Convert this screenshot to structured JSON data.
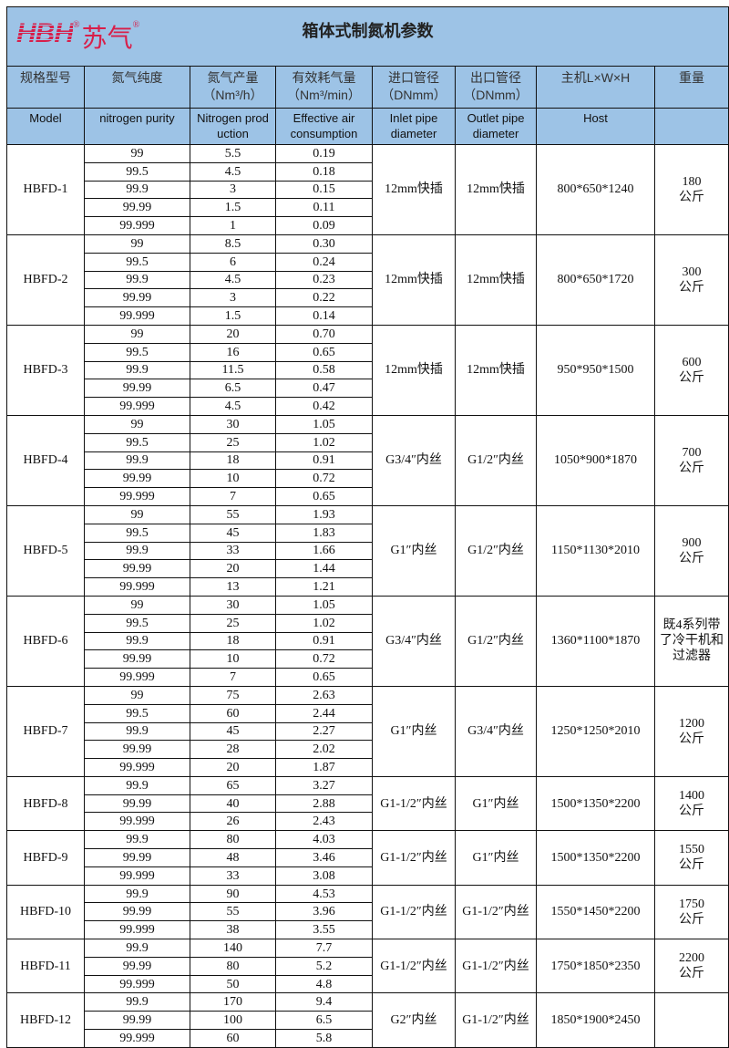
{
  "logo": {
    "mark": "HBH",
    "name": "苏气",
    "reg": "®"
  },
  "title": "箱体式制氮机参数",
  "headers_cn": [
    "规格型号",
    "氮气纯度",
    "氮气产量\n（Nm³/h）",
    "有效耗气量\n（Nm³/min）",
    "进口管径\n（DNmm）",
    "出口管径\n（DNmm）",
    "主机L×W×H",
    "重量"
  ],
  "headers_en": [
    "Model",
    "nitrogen purity",
    "Nitrogen prod\nuction",
    "Effective air\nconsumption",
    "Inlet pipe\ndiameter",
    "Outlet pipe\ndiameter",
    "Host",
    ""
  ],
  "models": [
    {
      "model": "HBFD-1",
      "rows": [
        [
          "99",
          "5.5",
          "0.19"
        ],
        [
          "99.5",
          "4.5",
          "0.18"
        ],
        [
          "99.9",
          "3",
          "0.15"
        ],
        [
          "99.99",
          "1.5",
          "0.11"
        ],
        [
          "99.999",
          "1",
          "0.09"
        ]
      ],
      "inlet": "12mm快插",
      "outlet": "12mm快插",
      "host": "800*650*1240",
      "weight": "180\n公斤"
    },
    {
      "model": "HBFD-2",
      "rows": [
        [
          "99",
          "8.5",
          "0.30"
        ],
        [
          "99.5",
          "6",
          "0.24"
        ],
        [
          "99.9",
          "4.5",
          "0.23"
        ],
        [
          "99.99",
          "3",
          "0.22"
        ],
        [
          "99.999",
          "1.5",
          "0.14"
        ]
      ],
      "inlet": "12mm快插",
      "outlet": "12mm快插",
      "host": "800*650*1720",
      "weight": "300\n公斤"
    },
    {
      "model": "HBFD-3",
      "rows": [
        [
          "99",
          "20",
          "0.70"
        ],
        [
          "99.5",
          "16",
          "0.65"
        ],
        [
          "99.9",
          "11.5",
          "0.58"
        ],
        [
          "99.99",
          "6.5",
          "0.47"
        ],
        [
          "99.999",
          "4.5",
          "0.42"
        ]
      ],
      "inlet": "12mm快插",
      "outlet": "12mm快插",
      "host": "950*950*1500",
      "weight": "600\n公斤"
    },
    {
      "model": "HBFD-4",
      "rows": [
        [
          "99",
          "30",
          "1.05"
        ],
        [
          "99.5",
          "25",
          "1.02"
        ],
        [
          "99.9",
          "18",
          "0.91"
        ],
        [
          "99.99",
          "10",
          "0.72"
        ],
        [
          "99.999",
          "7",
          "0.65"
        ]
      ],
      "inlet": "G3/4″内丝",
      "outlet": "G1/2″内丝",
      "host": "1050*900*1870",
      "weight": "700\n公斤"
    },
    {
      "model": "HBFD-5",
      "rows": [
        [
          "99",
          "55",
          "1.93"
        ],
        [
          "99.5",
          "45",
          "1.83"
        ],
        [
          "99.9",
          "33",
          "1.66"
        ],
        [
          "99.99",
          "20",
          "1.44"
        ],
        [
          "99.999",
          "13",
          "1.21"
        ]
      ],
      "inlet": "G1″内丝",
      "outlet": "G1/2″内丝",
      "host": "1150*1130*2010",
      "weight": "900\n公斤"
    },
    {
      "model": "HBFD-6",
      "rows": [
        [
          "99",
          "30",
          "1.05"
        ],
        [
          "99.5",
          "25",
          "1.02"
        ],
        [
          "99.9",
          "18",
          "0.91"
        ],
        [
          "99.99",
          "10",
          "0.72"
        ],
        [
          "99.999",
          "7",
          "0.65"
        ]
      ],
      "inlet": "G3/4″内丝",
      "outlet": "G1/2″内丝",
      "host": "1360*1100*1870",
      "weight": "既4系列带\n了冷干机和\n过滤器"
    },
    {
      "model": "HBFD-7",
      "rows": [
        [
          "99",
          "75",
          "2.63"
        ],
        [
          "99.5",
          "60",
          "2.44"
        ],
        [
          "99.9",
          "45",
          "2.27"
        ],
        [
          "99.99",
          "28",
          "2.02"
        ],
        [
          "99.999",
          "20",
          "1.87"
        ]
      ],
      "inlet": "G1″内丝",
      "outlet": "G3/4″内丝",
      "host": "1250*1250*2010",
      "weight": "1200\n公斤"
    },
    {
      "model": "HBFD-8",
      "rows": [
        [
          "99.9",
          "65",
          "3.27"
        ],
        [
          "99.99",
          "40",
          "2.88"
        ],
        [
          "99.999",
          "26",
          "2.43"
        ]
      ],
      "inlet": "G1-1/2″内丝",
      "outlet": "G1″内丝",
      "host": "1500*1350*2200",
      "weight": "1400\n公斤"
    },
    {
      "model": "HBFD-9",
      "rows": [
        [
          "99.9",
          "80",
          "4.03"
        ],
        [
          "99.99",
          "48",
          "3.46"
        ],
        [
          "99.999",
          "33",
          "3.08"
        ]
      ],
      "inlet": "G1-1/2″内丝",
      "outlet": "G1″内丝",
      "host": "1500*1350*2200",
      "weight": "1550\n公斤"
    },
    {
      "model": "HBFD-10",
      "rows": [
        [
          "99.9",
          "90",
          "4.53"
        ],
        [
          "99.99",
          "55",
          "3.96"
        ],
        [
          "99.999",
          "38",
          "3.55"
        ]
      ],
      "inlet": "G1-1/2″内丝",
      "outlet": "G1-1/2″内丝",
      "host": "1550*1450*2200",
      "weight": "1750\n公斤"
    },
    {
      "model": "HBFD-11",
      "rows": [
        [
          "99.9",
          "140",
          "7.7"
        ],
        [
          "99.99",
          "80",
          "5.2"
        ],
        [
          "99.999",
          "50",
          "4.8"
        ]
      ],
      "inlet": "G1-1/2″内丝",
      "outlet": "G1-1/2″内丝",
      "host": "1750*1850*2350",
      "weight": "2200\n公斤"
    },
    {
      "model": "HBFD-12",
      "rows": [
        [
          "99.9",
          "170",
          "9.4"
        ],
        [
          "99.99",
          "100",
          "6.5"
        ],
        [
          "99.999",
          "60",
          "5.8"
        ]
      ],
      "inlet": "G2″内丝",
      "outlet": "G1-1/2″内丝",
      "host": "1850*1900*2450",
      "weight": ""
    }
  ]
}
